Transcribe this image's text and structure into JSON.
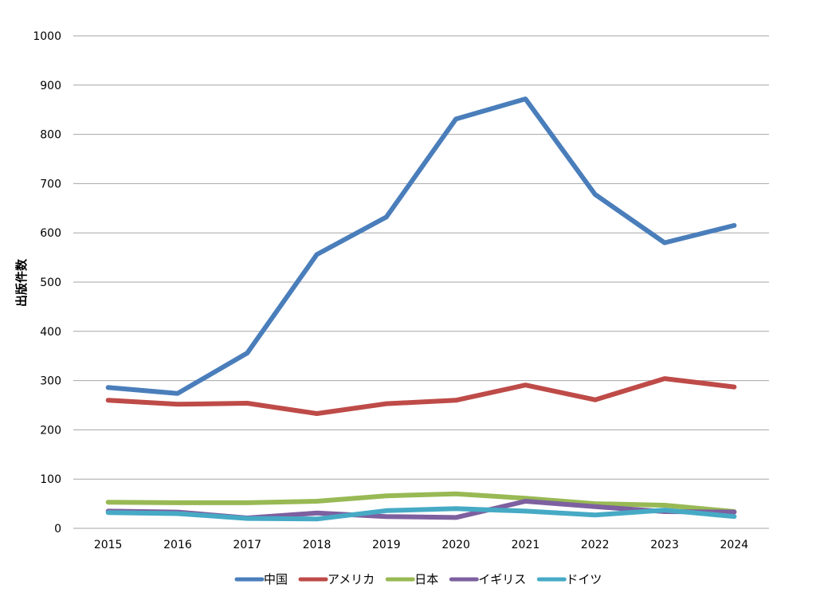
{
  "chart_data": {
    "type": "line",
    "title": "",
    "xlabel": "",
    "ylabel": "出版件数",
    "ylim": [
      0,
      1000
    ],
    "yticks": [
      "0",
      "100",
      "200",
      "300",
      "400",
      "500",
      "600",
      "700",
      "800",
      "900",
      "1000"
    ],
    "categories": [
      "2015",
      "2016",
      "2017",
      "2018",
      "2019",
      "2020",
      "2021",
      "2022",
      "2023",
      "2024"
    ],
    "grid": true,
    "legend_position": "bottom",
    "series": [
      {
        "name": "中国",
        "color": "#4a7ebb",
        "values": [
          286,
          274,
          356,
          556,
          632,
          831,
          872,
          678,
          580,
          615
        ]
      },
      {
        "name": "アメリカ",
        "color": "#be4b48",
        "values": [
          260,
          252,
          254,
          233,
          253,
          260,
          291,
          261,
          304,
          287
        ]
      },
      {
        "name": "日本",
        "color": "#98b954",
        "values": [
          53,
          52,
          52,
          55,
          66,
          70,
          61,
          50,
          47,
          34
        ]
      },
      {
        "name": "イギリス",
        "color": "#7d60a0",
        "values": [
          35,
          33,
          21,
          31,
          24,
          22,
          55,
          44,
          34,
          33
        ]
      },
      {
        "name": "ドイツ",
        "color": "#46aac5",
        "values": [
          32,
          30,
          20,
          19,
          36,
          40,
          35,
          27,
          37,
          24
        ]
      }
    ]
  }
}
